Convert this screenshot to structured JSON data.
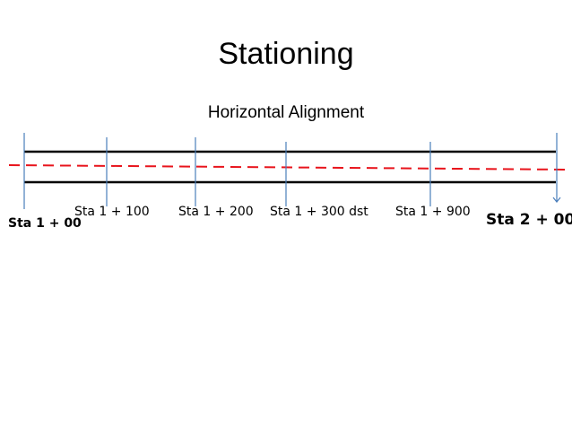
{
  "title": "Stationing",
  "subtitle": "Horizontal Alignment",
  "colors": {
    "road_edge": "#000000",
    "centerline": "#e8141c",
    "station_tick": "#4a7ebb"
  },
  "stations": [
    {
      "label": "Sta 1 + 00",
      "style": "bold"
    },
    {
      "label": "Sta 1 + 100",
      "style": "normal"
    },
    {
      "label": "Sta 1 + 200",
      "style": "normal"
    },
    {
      "label": "Sta 1 + 300 dst",
      "style": "normal"
    },
    {
      "label": "Sta 1 + 900",
      "style": "normal"
    },
    {
      "label": "Sta 2 + 00",
      "style": "big"
    }
  ]
}
